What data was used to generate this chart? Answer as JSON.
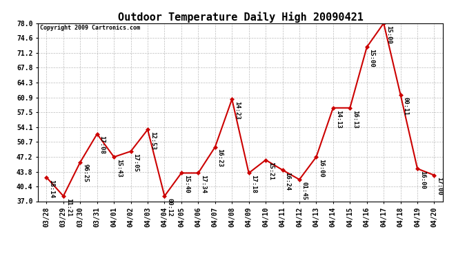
{
  "title": "Outdoor Temperature Daily High 20090421",
  "copyright": "Copyright 2009 Cartronics.com",
  "dates": [
    "03/28",
    "03/29",
    "03/30",
    "03/31",
    "04/01",
    "04/02",
    "04/03",
    "04/04",
    "04/05",
    "04/06",
    "04/07",
    "04/08",
    "04/09",
    "04/10",
    "04/11",
    "04/12",
    "04/13",
    "04/14",
    "04/15",
    "04/16",
    "04/17",
    "04/18",
    "04/19",
    "04/20"
  ],
  "temps": [
    42.5,
    38.2,
    46.0,
    52.5,
    47.2,
    48.5,
    53.5,
    38.2,
    43.5,
    43.5,
    49.5,
    60.5,
    43.5,
    46.5,
    44.2,
    42.0,
    47.2,
    58.5,
    58.5,
    72.5,
    78.0,
    61.5,
    44.5,
    43.0
  ],
  "times": [
    "18:14",
    "11:21",
    "96:25",
    "17:08",
    "15:43",
    "17:05",
    "12:53",
    "00:12",
    "15:40",
    "17:34",
    "16:23",
    "14:23",
    "17:18",
    "15:21",
    "16:24",
    "01:45",
    "16:00",
    "14:13",
    "16:13",
    "15:00",
    "15:00",
    "00:11",
    "16:00",
    "17:00"
  ],
  "ylim_min": 37.0,
  "ylim_max": 78.0,
  "yticks": [
    37.0,
    40.4,
    43.8,
    47.2,
    50.7,
    54.1,
    57.5,
    60.9,
    64.3,
    67.8,
    71.2,
    74.6,
    78.0
  ],
  "line_color": "#cc0000",
  "marker_color": "#cc0000",
  "bg_color": "#ffffff",
  "grid_color": "#aaaaaa",
  "title_fontsize": 11,
  "tick_fontsize": 7,
  "annot_fontsize": 6.5
}
